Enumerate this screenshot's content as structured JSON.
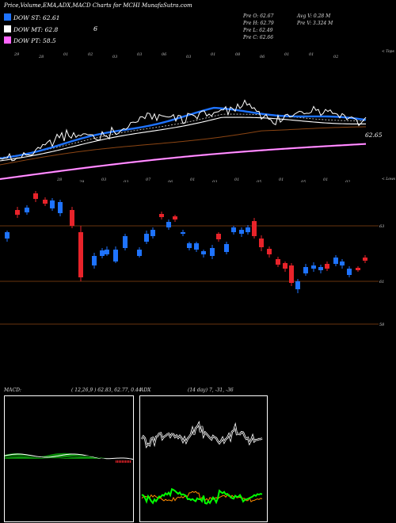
{
  "header": {
    "title": "Price,Volume,EMA,ADX,MACD Charts for MCHI MunafaSutra.com"
  },
  "legend": [
    {
      "label": "DOW ST: 62.61",
      "color": "#1e73ff",
      "extra": ""
    },
    {
      "label": "DOW MT: 62.8",
      "color": "#ffffff",
      "extra": "6"
    },
    {
      "label": "DOW PT: 58.5",
      "color": "#ff66ff",
      "extra": ""
    }
  ],
  "ohlc": {
    "open": "Pre  O: 62.67",
    "high": "Pre  H: 62.79",
    "low": "Pre  L: 62.49",
    "close": "Pre  C: 62.66",
    "avg_volume": "Avg V: 0.28  M",
    "pre_volume": "Pre  V: 3.324  M"
  },
  "ema_panel": {
    "top_label": "< Tops",
    "lows_label": "< Lows",
    "price_label": "62.65",
    "top_markers": [
      "29",
      "28",
      "01",
      "02",
      "03",
      "03",
      "06",
      "03",
      "01",
      "08",
      "06",
      "01",
      "01",
      "02"
    ],
    "low_markers": [
      "28",
      "29",
      "03",
      "03",
      "07",
      "06",
      "01",
      "03",
      "01",
      "05",
      "01",
      "05",
      "01",
      "02"
    ]
  },
  "candle_panel": {
    "levels": [
      "63",
      "61",
      "58"
    ]
  },
  "macd_panel": {
    "label": "MACD:",
    "values": "( 12,26,9 ) 62.83,  62.77,  0.44"
  },
  "adx_panel": {
    "label": "ADX",
    "values": "(14  day) 7,  -31,  -36"
  },
  "colors": {
    "st": "#1e73ff",
    "mt": "#ffffff",
    "pt": "#ff66ff",
    "up": "#1e73ff",
    "down": "#e8232a",
    "macd_fill": "#0a8a0a",
    "adx_green": "#00ff00",
    "adx_orange": "#ff8c00"
  },
  "chart_data": [
    {
      "type": "line",
      "series": [
        {
          "name": "DOW ST",
          "values": [
            62.61
          ]
        },
        {
          "name": "DOW MT",
          "values": [
            62.8
          ]
        },
        {
          "name": "DOW PT",
          "values": [
            58.5
          ]
        }
      ]
    },
    {
      "type": "candlestick",
      "y_levels": [
        63,
        61,
        58
      ],
      "last": {
        "open": 62.67,
        "high": 62.79,
        "low": 62.49,
        "close": 62.66
      }
    }
  ]
}
